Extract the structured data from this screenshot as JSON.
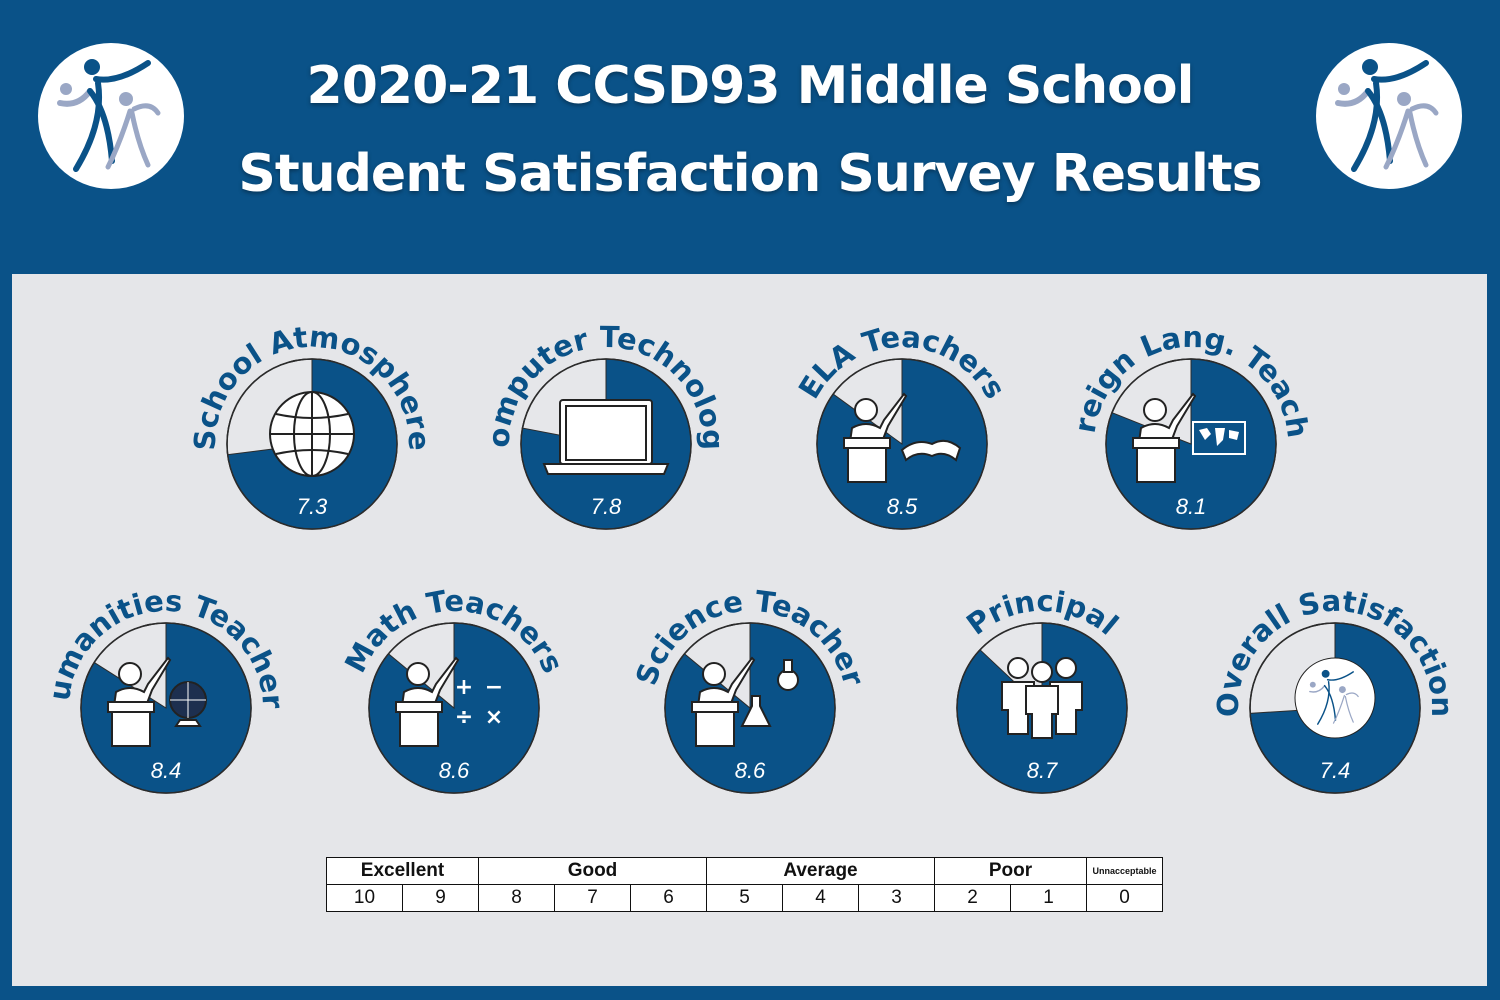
{
  "header": {
    "title_line1": "2020-21 CCSD93 Middle School",
    "title_line2": "Student Satisfaction Survey Results"
  },
  "colors": {
    "navy": "#0a5288",
    "panel": "#e5e6e9",
    "unfilled": "#e6e7ea",
    "logo_light": "#9aa7c5"
  },
  "chart_data": {
    "type": "pie",
    "scale_max": 10,
    "items": [
      {
        "label": "School Atmosphere",
        "value": 7.3,
        "value_label": "7.3",
        "icon": "globe-icon"
      },
      {
        "label": "Computer Technology",
        "value": 7.8,
        "value_label": "7.8",
        "icon": "laptop-icon"
      },
      {
        "label": "ELA Teachers",
        "value": 8.5,
        "value_label": "8.5",
        "icon": "teacher-book-icon"
      },
      {
        "label": "Foreign Lang. Teacher",
        "value": 8.1,
        "value_label": "8.1",
        "icon": "teacher-map-icon"
      },
      {
        "label": "Humanities Teachers",
        "value": 8.4,
        "value_label": "8.4",
        "icon": "teacher-globe-icon"
      },
      {
        "label": "Math Teachers",
        "value": 8.6,
        "value_label": "8.6",
        "icon": "teacher-math-icon"
      },
      {
        "label": "Science Teacher",
        "value": 8.6,
        "value_label": "8.6",
        "icon": "teacher-flask-icon"
      },
      {
        "label": "Principal",
        "value": 8.7,
        "value_label": "8.7",
        "icon": "people-icon"
      },
      {
        "label": "Overall Satisfaction",
        "value": 7.4,
        "value_label": "7.4",
        "icon": "ccsd93-logo-icon"
      }
    ]
  },
  "scale": {
    "categories": [
      "Excellent",
      "Good",
      "Average",
      "Poor",
      "Unnacceptable"
    ],
    "numbers": [
      "10",
      "9",
      "8",
      "7",
      "6",
      "5",
      "4",
      "3",
      "2",
      "1",
      "0"
    ]
  }
}
